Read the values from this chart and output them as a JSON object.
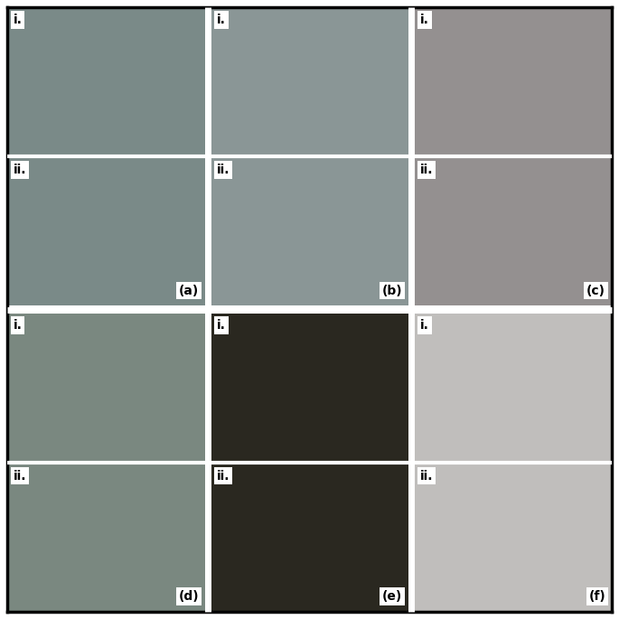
{
  "panel_labels": [
    "(a)",
    "(b)",
    "(c)",
    "(d)",
    "(e)",
    "(f)"
  ],
  "sub_labels": [
    "i.",
    "ii."
  ],
  "label_fontsize": 10,
  "bg_colors": [
    [
      "#7a8a88",
      "#8a9696",
      "#949090"
    ],
    [
      "#7a8880",
      "#2a2820",
      "#c0bebC"
    ]
  ],
  "outer_border_color": "#000000",
  "outer_border_lw": 2.5,
  "separator_color": "#ffffff",
  "sep_major_lw": 5,
  "sep_minor_lw": 3,
  "figsize": [
    6.85,
    6.85
  ],
  "dpi": 100
}
